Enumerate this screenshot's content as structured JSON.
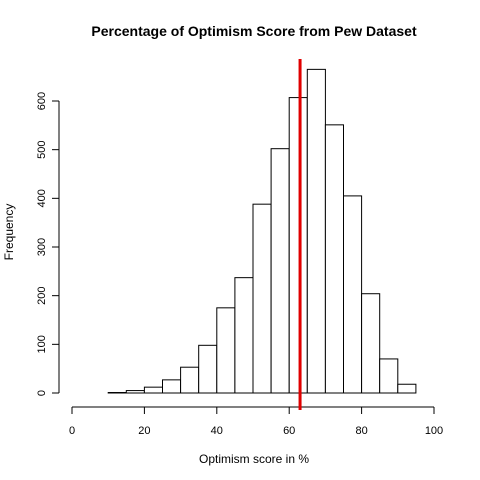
{
  "chart_data": {
    "type": "bar",
    "title": "Percentage of Optimism Score from Pew Dataset",
    "xlabel": "Optimism score in %",
    "ylabel": "Frequency",
    "xlim": [
      0,
      100
    ],
    "ylim": [
      0,
      680
    ],
    "x_ticks": [
      0,
      20,
      40,
      60,
      80,
      100
    ],
    "y_ticks": [
      0,
      100,
      200,
      300,
      400,
      500,
      600
    ],
    "bin_width": 5,
    "bins": [
      {
        "start": 5,
        "end": 10,
        "value": 0
      },
      {
        "start": 10,
        "end": 15,
        "value": 1
      },
      {
        "start": 15,
        "end": 20,
        "value": 5
      },
      {
        "start": 20,
        "end": 25,
        "value": 12
      },
      {
        "start": 25,
        "end": 30,
        "value": 27
      },
      {
        "start": 30,
        "end": 35,
        "value": 53
      },
      {
        "start": 35,
        "end": 40,
        "value": 98
      },
      {
        "start": 40,
        "end": 45,
        "value": 175
      },
      {
        "start": 45,
        "end": 50,
        "value": 237
      },
      {
        "start": 50,
        "end": 55,
        "value": 388
      },
      {
        "start": 55,
        "end": 60,
        "value": 502
      },
      {
        "start": 60,
        "end": 65,
        "value": 607
      },
      {
        "start": 65,
        "end": 70,
        "value": 665
      },
      {
        "start": 70,
        "end": 75,
        "value": 551
      },
      {
        "start": 75,
        "end": 80,
        "value": 405
      },
      {
        "start": 80,
        "end": 85,
        "value": 204
      },
      {
        "start": 85,
        "end": 90,
        "value": 70
      },
      {
        "start": 90,
        "end": 95,
        "value": 18
      }
    ],
    "reference_line": {
      "x": 63,
      "color": "#e00000"
    },
    "bar_fill": "#ffffff",
    "bar_stroke": "#000000",
    "grid": false
  }
}
